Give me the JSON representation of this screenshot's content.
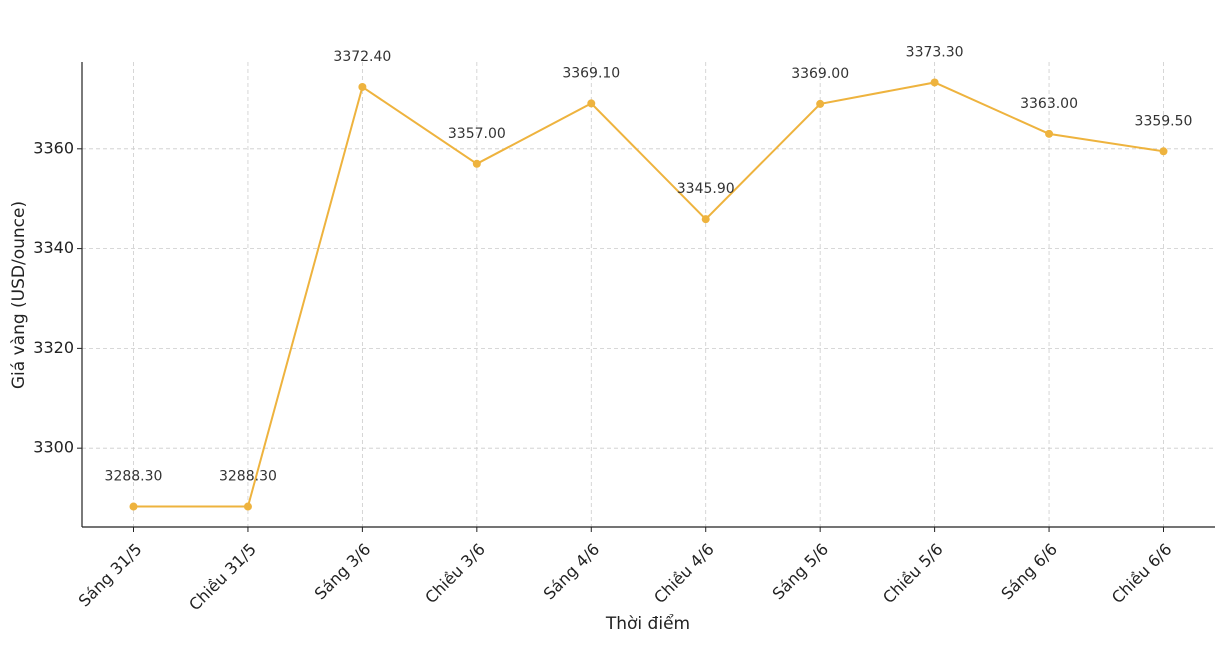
{
  "chart_data": {
    "type": "line",
    "x_label": "Thời điểm",
    "y_label": "Giá vàng (USD/ounce)",
    "categories": [
      "Sáng 31/5",
      "Chiều 31/5",
      "Sáng 3/6",
      "Chiều 3/6",
      "Sáng 4/6",
      "Chiều 4/6",
      "Sáng 5/6",
      "Chiều 5/6",
      "Sáng 6/6",
      "Chiều 6/6"
    ],
    "values": [
      3288.3,
      3288.3,
      3372.4,
      3357.0,
      3369.1,
      3345.9,
      3369.0,
      3373.3,
      3363.0,
      3359.5
    ],
    "value_labels": [
      "3288.30",
      "3288.30",
      "3372.40",
      "3357.00",
      "3369.10",
      "3345.90",
      "3369.00",
      "3373.30",
      "3363.00",
      "3359.50"
    ],
    "color": "#eeb33e",
    "ylim": [
      3284.2,
      3377.4
    ],
    "yticks": [
      3300,
      3320,
      3340,
      3360
    ],
    "grid": true
  }
}
